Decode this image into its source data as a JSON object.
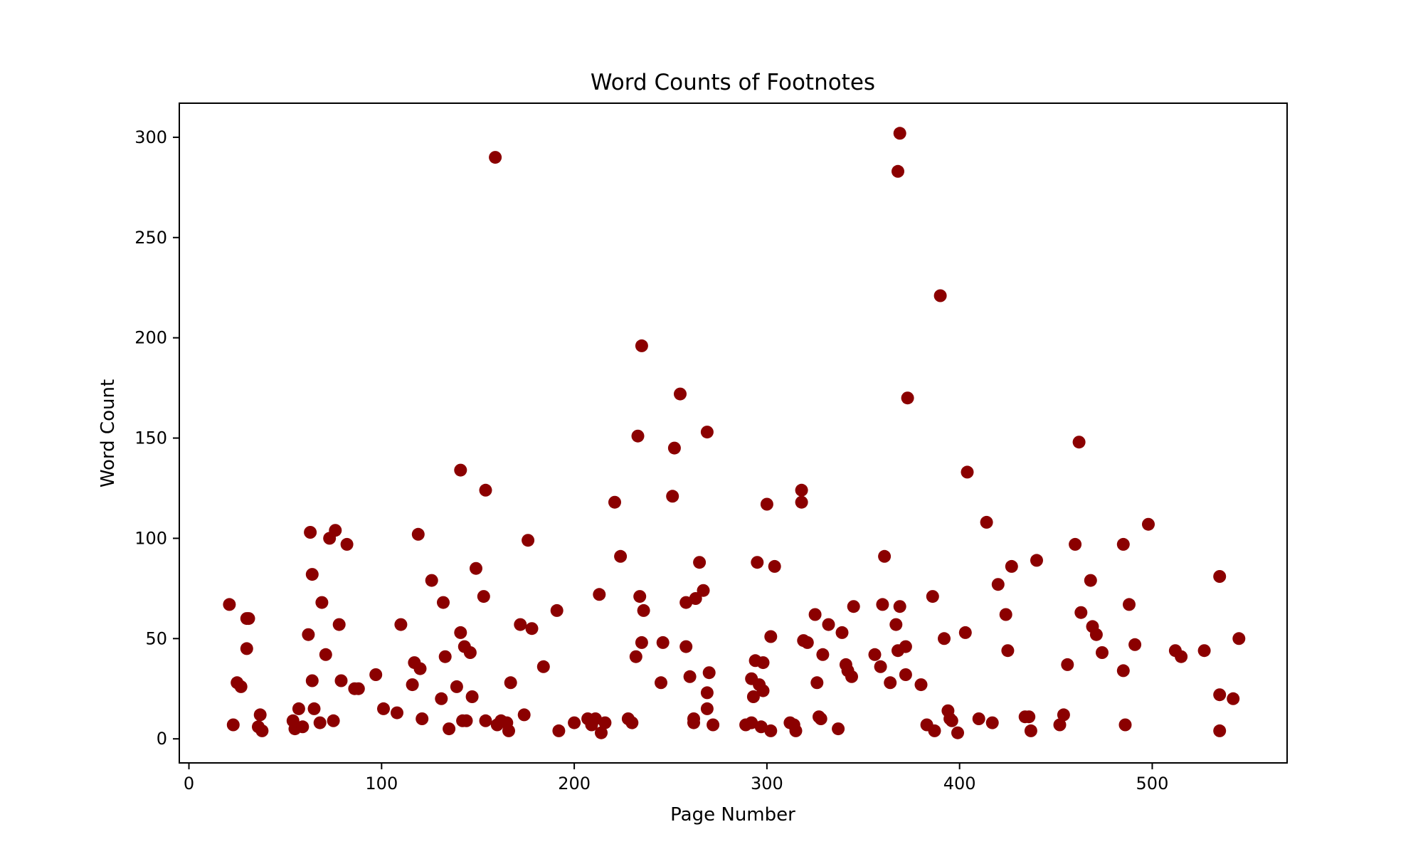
{
  "chart_data": {
    "type": "scatter",
    "title": "Word Counts of Footnotes",
    "xlabel": "Page Number",
    "ylabel": "Word Count",
    "xlim": [
      -5,
      570
    ],
    "ylim": [
      -12,
      317
    ],
    "xticks": [
      0,
      100,
      200,
      300,
      400,
      500
    ],
    "yticks": [
      0,
      50,
      100,
      150,
      200,
      250,
      300
    ],
    "grid": false,
    "marker_color": "#8b0000",
    "points": [
      [
        21,
        67
      ],
      [
        23,
        7
      ],
      [
        25,
        28
      ],
      [
        27,
        26
      ],
      [
        30,
        60
      ],
      [
        31,
        60
      ],
      [
        30,
        45
      ],
      [
        36,
        6
      ],
      [
        37,
        12
      ],
      [
        38,
        4
      ],
      [
        54,
        9
      ],
      [
        55,
        5
      ],
      [
        57,
        15
      ],
      [
        59,
        6
      ],
      [
        62,
        52
      ],
      [
        63,
        103
      ],
      [
        64,
        82
      ],
      [
        64,
        29
      ],
      [
        65,
        15
      ],
      [
        68,
        8
      ],
      [
        69,
        68
      ],
      [
        71,
        42
      ],
      [
        73,
        100
      ],
      [
        75,
        9
      ],
      [
        76,
        104
      ],
      [
        78,
        57
      ],
      [
        79,
        29
      ],
      [
        82,
        97
      ],
      [
        86,
        25
      ],
      [
        88,
        25
      ],
      [
        97,
        32
      ],
      [
        101,
        15
      ],
      [
        108,
        13
      ],
      [
        110,
        57
      ],
      [
        116,
        27
      ],
      [
        117,
        38
      ],
      [
        119,
        102
      ],
      [
        120,
        35
      ],
      [
        121,
        10
      ],
      [
        126,
        79
      ],
      [
        131,
        20
      ],
      [
        132,
        68
      ],
      [
        133,
        41
      ],
      [
        135,
        5
      ],
      [
        139,
        26
      ],
      [
        141,
        53
      ],
      [
        141,
        134
      ],
      [
        142,
        9
      ],
      [
        143,
        46
      ],
      [
        144,
        9
      ],
      [
        146,
        43
      ],
      [
        147,
        21
      ],
      [
        149,
        85
      ],
      [
        153,
        71
      ],
      [
        154,
        124
      ],
      [
        154,
        9
      ],
      [
        159,
        290
      ],
      [
        160,
        7
      ],
      [
        162,
        9
      ],
      [
        165,
        8
      ],
      [
        166,
        4
      ],
      [
        167,
        28
      ],
      [
        172,
        57
      ],
      [
        174,
        12
      ],
      [
        176,
        99
      ],
      [
        178,
        55
      ],
      [
        184,
        36
      ],
      [
        191,
        64
      ],
      [
        192,
        4
      ],
      [
        200,
        8
      ],
      [
        207,
        10
      ],
      [
        209,
        7
      ],
      [
        211,
        10
      ],
      [
        213,
        72
      ],
      [
        214,
        3
      ],
      [
        216,
        8
      ],
      [
        221,
        118
      ],
      [
        224,
        91
      ],
      [
        228,
        10
      ],
      [
        230,
        8
      ],
      [
        232,
        41
      ],
      [
        233,
        151
      ],
      [
        234,
        71
      ],
      [
        235,
        48
      ],
      [
        235,
        196
      ],
      [
        236,
        64
      ],
      [
        245,
        28
      ],
      [
        246,
        48
      ],
      [
        251,
        121
      ],
      [
        252,
        145
      ],
      [
        255,
        172
      ],
      [
        258,
        46
      ],
      [
        258,
        68
      ],
      [
        260,
        31
      ],
      [
        262,
        8
      ],
      [
        262,
        10
      ],
      [
        263,
        70
      ],
      [
        265,
        88
      ],
      [
        267,
        74
      ],
      [
        269,
        23
      ],
      [
        269,
        15
      ],
      [
        269,
        153
      ],
      [
        270,
        33
      ],
      [
        272,
        7
      ],
      [
        289,
        7
      ],
      [
        292,
        30
      ],
      [
        292,
        8
      ],
      [
        293,
        21
      ],
      [
        294,
        39
      ],
      [
        295,
        88
      ],
      [
        296,
        27
      ],
      [
        297,
        6
      ],
      [
        298,
        38
      ],
      [
        298,
        24
      ],
      [
        300,
        117
      ],
      [
        302,
        51
      ],
      [
        302,
        4
      ],
      [
        304,
        86
      ],
      [
        312,
        8
      ],
      [
        314,
        7
      ],
      [
        315,
        4
      ],
      [
        318,
        118
      ],
      [
        318,
        124
      ],
      [
        319,
        49
      ],
      [
        321,
        48
      ],
      [
        325,
        62
      ],
      [
        326,
        28
      ],
      [
        327,
        11
      ],
      [
        328,
        10
      ],
      [
        329,
        42
      ],
      [
        332,
        57
      ],
      [
        337,
        5
      ],
      [
        339,
        53
      ],
      [
        341,
        37
      ],
      [
        342,
        34
      ],
      [
        344,
        31
      ],
      [
        345,
        66
      ],
      [
        356,
        42
      ],
      [
        359,
        36
      ],
      [
        360,
        67
      ],
      [
        361,
        91
      ],
      [
        364,
        28
      ],
      [
        367,
        57
      ],
      [
        368,
        44
      ],
      [
        368,
        283
      ],
      [
        369,
        66
      ],
      [
        369,
        302
      ],
      [
        372,
        46
      ],
      [
        372,
        32
      ],
      [
        373,
        170
      ],
      [
        380,
        27
      ],
      [
        383,
        7
      ],
      [
        386,
        71
      ],
      [
        387,
        4
      ],
      [
        390,
        221
      ],
      [
        392,
        50
      ],
      [
        394,
        14
      ],
      [
        395,
        10
      ],
      [
        396,
        9
      ],
      [
        399,
        3
      ],
      [
        403,
        53
      ],
      [
        404,
        133
      ],
      [
        410,
        10
      ],
      [
        414,
        108
      ],
      [
        417,
        8
      ],
      [
        420,
        77
      ],
      [
        424,
        62
      ],
      [
        425,
        44
      ],
      [
        427,
        86
      ],
      [
        434,
        11
      ],
      [
        436,
        11
      ],
      [
        437,
        4
      ],
      [
        440,
        89
      ],
      [
        452,
        7
      ],
      [
        454,
        12
      ],
      [
        456,
        37
      ],
      [
        460,
        97
      ],
      [
        462,
        148
      ],
      [
        463,
        63
      ],
      [
        468,
        79
      ],
      [
        469,
        56
      ],
      [
        471,
        52
      ],
      [
        474,
        43
      ],
      [
        485,
        97
      ],
      [
        485,
        34
      ],
      [
        486,
        7
      ],
      [
        488,
        67
      ],
      [
        491,
        47
      ],
      [
        498,
        107
      ],
      [
        512,
        44
      ],
      [
        515,
        41
      ],
      [
        527,
        44
      ],
      [
        535,
        81
      ],
      [
        535,
        22
      ],
      [
        535,
        4
      ],
      [
        542,
        20
      ],
      [
        545,
        50
      ]
    ]
  }
}
